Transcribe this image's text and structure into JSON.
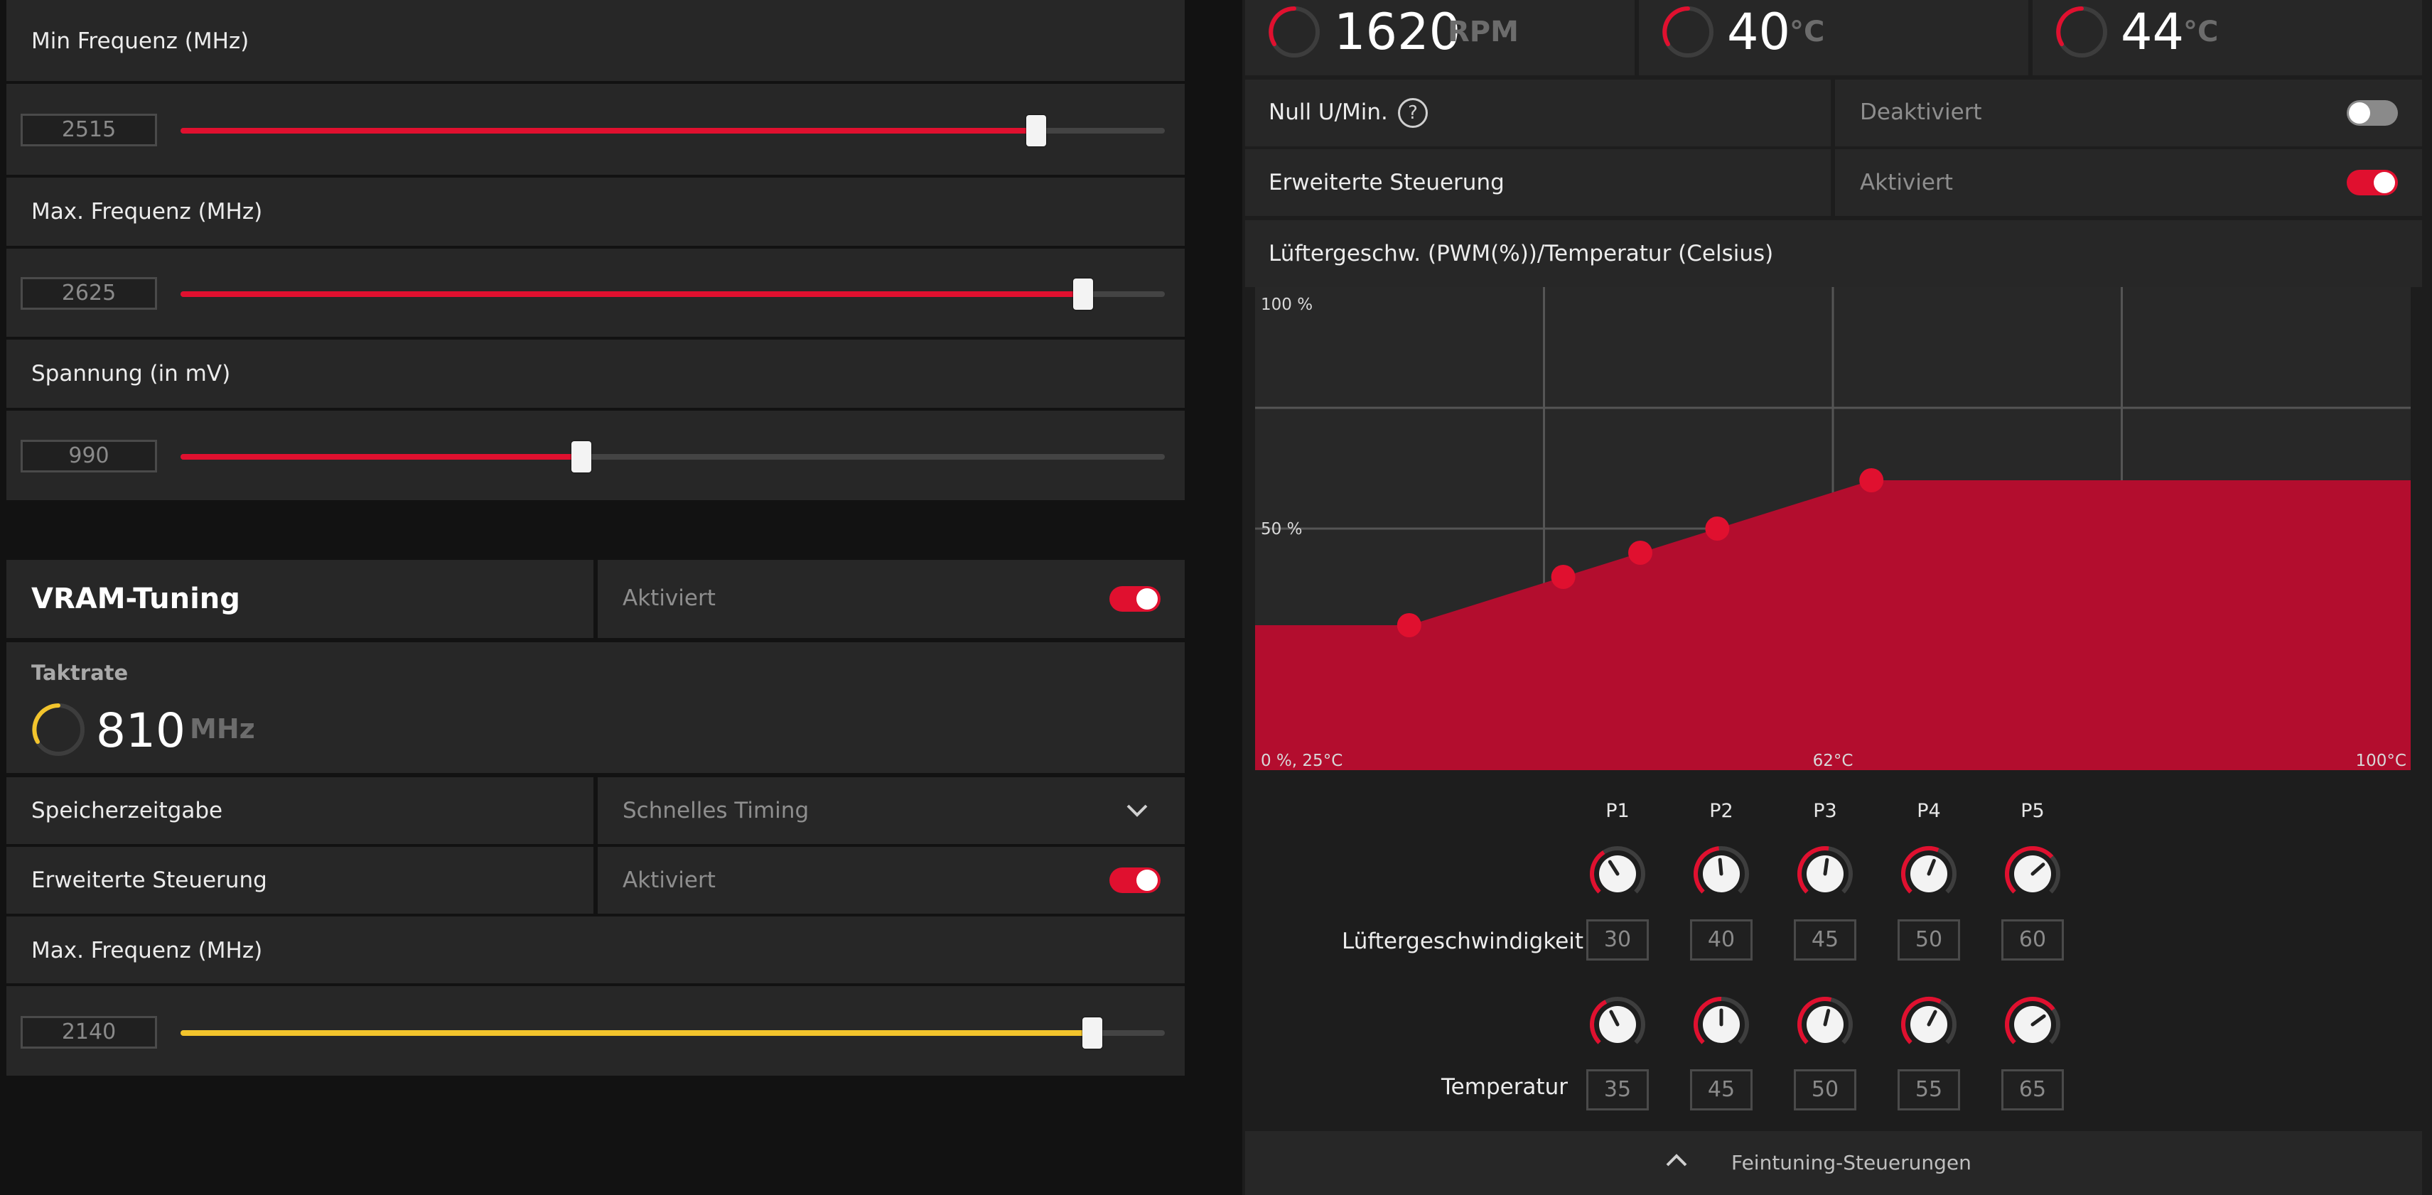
{
  "colors": {
    "accent": "#e0102f",
    "vram_accent": "#f2c42c",
    "panel": "#272727",
    "background": "#121212"
  },
  "gpu_tuning": {
    "min_freq": {
      "label": "Min Frequenz (MHz)",
      "value": "2515",
      "fraction": 0.869
    },
    "max_freq": {
      "label": "Max. Frequenz (MHz)",
      "value": "2625",
      "fraction": 0.917
    },
    "voltage": {
      "label": "Spannung (in mV)",
      "value": "990",
      "fraction": 0.407
    }
  },
  "vram": {
    "title": "VRAM-Tuning",
    "status": "Aktiviert",
    "clock_label": "Taktrate",
    "clock_value": "810",
    "clock_unit": "MHz",
    "memory_timing": {
      "label": "Speicherzeitgabe",
      "value": "Schnelles Timing",
      "icon": "chevron-down-icon"
    },
    "advanced": {
      "label": "Erweiterte Steuerung",
      "value": "Aktiviert"
    },
    "max_freq": {
      "label": "Max. Frequenz (MHz)",
      "value": "2140",
      "fraction": 0.926
    }
  },
  "fan": {
    "metrics": [
      {
        "value": "1620",
        "unit": "RPM"
      },
      {
        "value": "40",
        "unit": "°C"
      },
      {
        "value": "44",
        "unit": "°C"
      }
    ],
    "zero_rpm": {
      "label": "Null U/Min.",
      "value": "Deaktiviert",
      "icon": "help-icon"
    },
    "advanced": {
      "label": "Erweiterte Steuerung",
      "value": "Aktiviert"
    },
    "curve_title": "Lüftergeschw. (PWM(%))/Temperatur (Celsius)",
    "points_labels": [
      "P1",
      "P2",
      "P3",
      "P4",
      "P5"
    ],
    "speed_label": "Lüftergeschwindigkeit",
    "speed_values": [
      "30",
      "40",
      "45",
      "50",
      "60"
    ],
    "temp_label": "Temperatur",
    "temp_values": [
      "35",
      "45",
      "50",
      "55",
      "65"
    ],
    "footer": {
      "label": "Feintuning-Steuerungen",
      "icon": "chevron-up-icon"
    }
  },
  "chart_data": {
    "type": "area",
    "x": [
      35,
      45,
      50,
      55,
      65
    ],
    "y": [
      30,
      40,
      45,
      50,
      60
    ],
    "xlim": [
      25,
      100
    ],
    "ylim": [
      0,
      100
    ],
    "y_tick_labels": [
      "100 %",
      "50 %"
    ],
    "x_tick_labels": [
      "0 %, 25°C",
      "62°C",
      "100°C"
    ],
    "grid": true
  }
}
